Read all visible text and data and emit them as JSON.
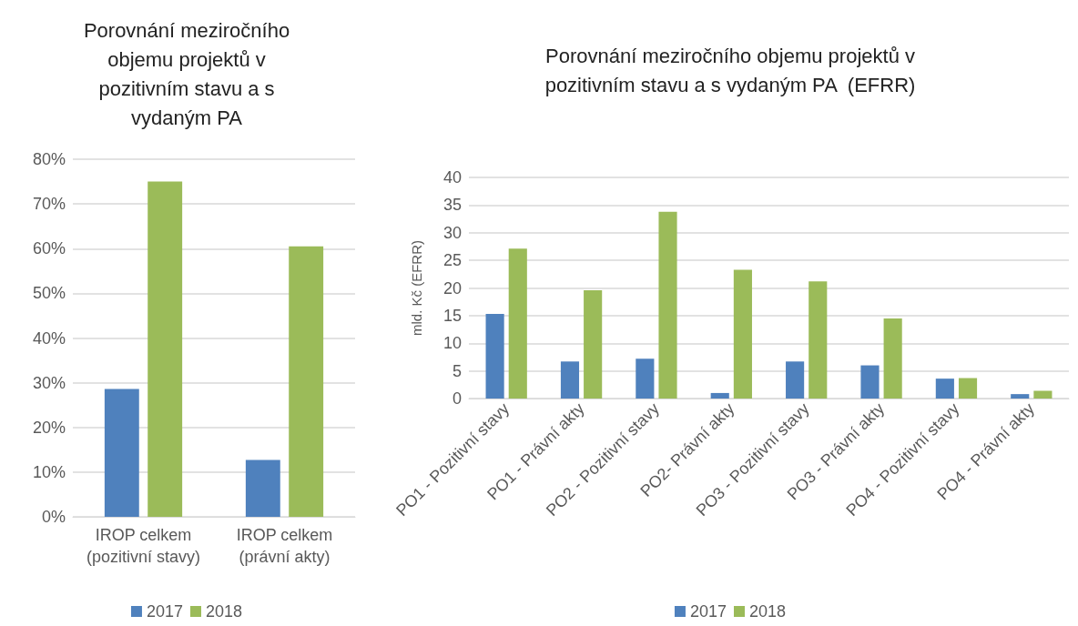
{
  "chart_data": [
    {
      "type": "bar",
      "title": "Porovnání meziročního\nobjemu projektů v\npozitivním stavu a s\nvydaným PA",
      "categories": [
        "IROP celkem\n(pozitivní stavy)",
        "IROP celkem\n(právní akty)"
      ],
      "series": [
        {
          "name": "2017",
          "color": "#4f81bd",
          "values": [
            28.6,
            12.7
          ]
        },
        {
          "name": "2018",
          "color": "#9bbb59",
          "values": [
            75,
            60.5
          ]
        }
      ],
      "ylim": [
        0,
        80
      ],
      "yticks": [
        {
          "value": 0,
          "label": "0%"
        },
        {
          "value": 10,
          "label": "10%"
        },
        {
          "value": 20,
          "label": "20%"
        },
        {
          "value": 30,
          "label": "30%"
        },
        {
          "value": 40,
          "label": "40%"
        },
        {
          "value": 50,
          "label": "50%"
        },
        {
          "value": 60,
          "label": "60%"
        },
        {
          "value": 70,
          "label": "70%"
        },
        {
          "value": 80,
          "label": "80%"
        }
      ],
      "grid": "y",
      "legend": "bottom"
    },
    {
      "type": "bar",
      "title": "Porovnání meziročního objemu projektů v\npozitivním stavu a s vydaným PA  (EFRR)",
      "ylabel": "mld. Kč (EFRR)",
      "categories": [
        "PO1 - Pozitivní stavy",
        "PO1 - Právní akty",
        "PO2 - Pozitivní stavy",
        "PO2- Právní akty",
        "PO3 - Pozitivní stavy",
        "PO3 - Právní akty",
        "PO4 - Pozitivní stavy",
        "PO4 - Právní akty"
      ],
      "series": [
        {
          "name": "2017",
          "color": "#4f81bd",
          "values": [
            15.3,
            6.7,
            7.2,
            1.0,
            6.7,
            6.0,
            3.6,
            0.8
          ]
        },
        {
          "name": "2018",
          "color": "#9bbb59",
          "values": [
            27.1,
            19.6,
            33.8,
            23.3,
            21.2,
            14.5,
            3.7,
            1.4
          ]
        }
      ],
      "ylim": [
        0,
        40
      ],
      "yticks": [
        0,
        5,
        10,
        15,
        20,
        25,
        30,
        35,
        40
      ],
      "grid": "y",
      "legend": "bottom"
    }
  ]
}
